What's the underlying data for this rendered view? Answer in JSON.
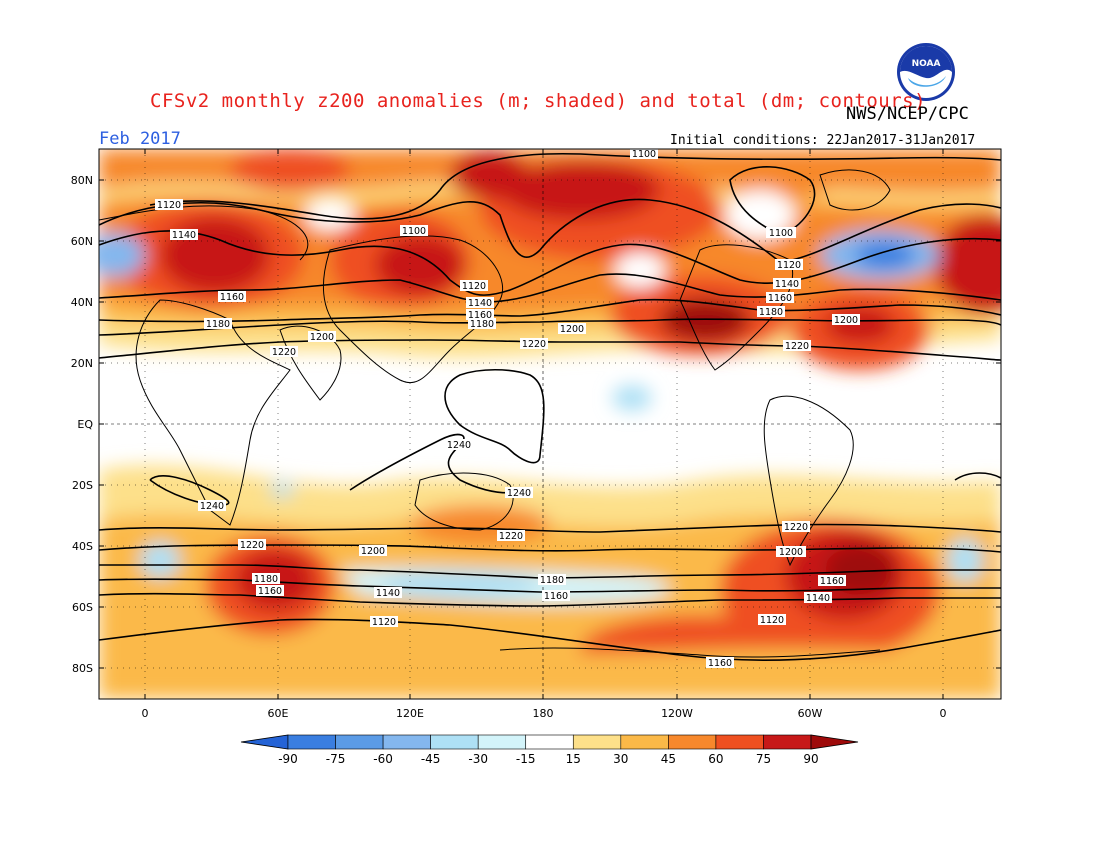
{
  "title": "CFSv2 monthly z200 anomalies (m; shaded) and total (dm; contours)",
  "organization": "NWS/NCEP/CPC",
  "logo_text": "NOAA",
  "valid_month": "Feb 2017",
  "initial_conditions": "Initial conditions: 22Jan2017-31Jan2017",
  "lat_labels": [
    "80N",
    "60N",
    "40N",
    "20N",
    "EQ",
    "20S",
    "40S",
    "60S",
    "80S"
  ],
  "lon_labels": [
    "0",
    "60E",
    "120E",
    "180",
    "120W",
    "60W",
    "0"
  ],
  "colorbar": {
    "labels": [
      "-90",
      "-75",
      "-60",
      "-45",
      "-30",
      "-15",
      "15",
      "30",
      "45",
      "60",
      "75",
      "90"
    ],
    "colors": [
      "#2463d6",
      "#3a7ee0",
      "#5b9be6",
      "#84b7ee",
      "#aee0f5",
      "#d3f4fa",
      "#ffffff",
      "#fde08a",
      "#fbb948",
      "#f7882c",
      "#ef5020",
      "#c71818",
      "#9e0a0a"
    ]
  },
  "contour_labels": {
    "c1100a": "1100",
    "c1100b": "1100",
    "c1100c": "1100",
    "c1120a": "1120",
    "c1120b": "1120",
    "c1120c": "1120",
    "c1140a": "1140",
    "c1140b": "1140",
    "c1140c": "1140",
    "c1160a": "1160",
    "c1160b": "1160",
    "c1160c": "1160",
    "c1180a": "1180",
    "c1180b": "1180",
    "c1180c": "1180",
    "c1200a": "1200",
    "c1200b": "1200",
    "c1200c": "1200",
    "c1220a": "1220",
    "c1220b": "1220",
    "c1220c": "1220",
    "c1240a": "1240",
    "c1240b": "1240",
    "c1240c": "1240",
    "s1120a": "1120",
    "s1120b": "1120",
    "s1140a": "1140",
    "s1140b": "1140",
    "s1160a": "1160",
    "s1160b": "1160",
    "s1160c": "1160",
    "s1180a": "1180",
    "s1180b": "1180",
    "s1200a": "1200",
    "s1200b": "1200",
    "s1220a": "1220",
    "s1220b": "1220",
    "s1220c": "1220",
    "s1240a": "1240"
  }
}
